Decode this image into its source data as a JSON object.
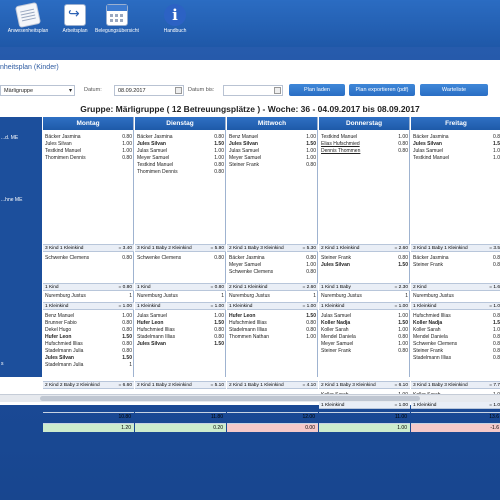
{
  "toolbar": {
    "items": [
      {
        "label": "Anwesenheitsplan",
        "icon": "sheet-icon"
      },
      {
        "label": "Arbeitsplan",
        "icon": "arrow-icon"
      },
      {
        "label": "Belegungsübersicht",
        "icon": "calendar-icon"
      },
      {
        "label": "Handbuch",
        "icon": "info-icon"
      }
    ]
  },
  "window": {
    "title": "nheitsplan (Kinder)",
    "group_value": "Märligruppe",
    "datum_label": "Datum:",
    "datum_value": "08.09.2017",
    "datum_bis_label": "Datum bis:",
    "datum_bis_value": "",
    "btn_load": "Plan laden",
    "btn_export": "Plan exportieren (pdf)",
    "btn_waitlist": "Warteliste",
    "heading": "Gruppe: Märligruppe ( 12 Betreuungsplätze ) - Woche: 36 - 04.09.2017 bis 08.09.2017"
  },
  "row_labels": {
    "r1": "...d. ME",
    "r2": "...hne ME",
    "r3": "s",
    "r4": "lastung"
  },
  "days": [
    {
      "name": "Montag",
      "block1": [
        {
          "t": "Bäcker Jasmina",
          "v": "0.80"
        },
        {
          "t": "Jules Silvan",
          "v": "1.00"
        },
        {
          "t": "Testkind Manuel",
          "v": "1.00"
        },
        {
          "t": "Thomimen Dennis",
          "v": "0.80"
        }
      ],
      "sum1": {
        "t": "3 Kind 1 Kleinkind",
        "v": "= 3.40"
      },
      "block2": [
        {
          "t": "Schwenke Clemens",
          "v": "0.80"
        }
      ],
      "sum2": {
        "t": "1 Kind",
        "v": "= 0.80"
      },
      "nurse": {
        "t": "Nuremburg Justus",
        "v": "1"
      },
      "sum3": {
        "t": "1 Kleinkind",
        "v": "= 1.00"
      },
      "block3": [
        {
          "t": "Benz Manuel",
          "v": "1.00"
        },
        {
          "t": "Brunner Fabio",
          "v": "0.80"
        },
        {
          "t": "Dekel Hugo",
          "v": "0.80"
        },
        {
          "t": "Hufer Leon",
          "v": "1.50",
          "b": true
        },
        {
          "t": "Hufschmied Illias",
          "v": "0.80"
        },
        {
          "t": "Stadelmann Julia",
          "v": "0.80"
        },
        {
          "t": "Jules Silvan",
          "v": "1.50",
          "b": true
        },
        {
          "t": "Stadelmann Julia",
          "v": "1"
        }
      ],
      "sum4": {
        "t": "2 Kind 2 Baby 2 Kleinkind",
        "v": "= 6.60"
      },
      "extra": [],
      "sum5": {
        "t": "",
        "v": ""
      },
      "total": "10.80",
      "diff": "1.20",
      "diff_state": "pos"
    },
    {
      "name": "Dienstag",
      "block1": [
        {
          "t": "Bäcker Jasmina",
          "v": "0.80"
        },
        {
          "t": "Jules Silvan",
          "v": "1.50",
          "b": true
        },
        {
          "t": "Julas Samuel",
          "v": "1.00"
        },
        {
          "t": "Meyer Samuel",
          "v": "1.00"
        },
        {
          "t": "Testkind Manuel",
          "v": "0.80"
        },
        {
          "t": "Thomimen Dennis",
          "v": "0.80"
        }
      ],
      "sum1": {
        "t": "3 Kind 1 Baby 2 Kleinkind",
        "v": "= 5.90"
      },
      "block2": [
        {
          "t": "Schwenke Clemens",
          "v": "0.80"
        }
      ],
      "sum2": {
        "t": "1 Kind",
        "v": "= 0.80"
      },
      "nurse": {
        "t": "Nuremburg Justus",
        "v": "1"
      },
      "sum3": {
        "t": "1 Kleinkind",
        "v": "= 1.00"
      },
      "block3": [
        {
          "t": "Julas Samuel",
          "v": "1.00"
        },
        {
          "t": "Hufer Leon",
          "v": "1.50",
          "b": true
        },
        {
          "t": "Hufschmied Illias",
          "v": "0.80"
        },
        {
          "t": "Stadelmann Illias",
          "v": "0.80"
        },
        {
          "t": "Jules Silvan",
          "v": "1.50",
          "b": true
        }
      ],
      "sum4": {
        "t": "2 Kind 1 Baby 2 Kleinkind",
        "v": "= 5.10"
      },
      "extra": [],
      "sum5": {
        "t": "",
        "v": ""
      },
      "total": "11.80",
      "diff": "0.20",
      "diff_state": "pos"
    },
    {
      "name": "Mittwoch",
      "block1": [
        {
          "t": "Benz Manuel",
          "v": "1.00"
        },
        {
          "t": "Jules Silvan",
          "v": "1.50",
          "b": true
        },
        {
          "t": "Julas Samuel",
          "v": "1.00"
        },
        {
          "t": "Meyer Samuel",
          "v": "1.00"
        },
        {
          "t": "Steiner Frank",
          "v": "0.80"
        }
      ],
      "sum1": {
        "t": "2 Kind 1 Baby 3 Kleinkind",
        "v": "= 5.30"
      },
      "block2": [
        {
          "t": "Bäcker Jasmina",
          "v": "0.80"
        },
        {
          "t": "Meyer Samuel",
          "v": "1.00"
        },
        {
          "t": "Schwenke Clemens",
          "v": "0.80"
        }
      ],
      "sum2": {
        "t": "2 Kind 1 Kleinkind",
        "v": "= 2.60"
      },
      "nurse": {
        "t": "Nuremburg Justus",
        "v": "1"
      },
      "sum3": {
        "t": "1 Kleinkind",
        "v": "= 1.00"
      },
      "block3": [
        {
          "t": "Hufer Leon",
          "v": "1.50",
          "b": true
        },
        {
          "t": "Hufschmied Illias",
          "v": "0.80"
        },
        {
          "t": "Stadelmann Illias",
          "v": "0.80"
        },
        {
          "t": "Thommen Nathan",
          "v": "1.00"
        }
      ],
      "sum4": {
        "t": "2 Kind 1 Baby 1 Kleinkind",
        "v": "= 4.10"
      },
      "extra": [],
      "sum5": {
        "t": "",
        "v": ""
      },
      "total": "12.00",
      "diff": "0.00",
      "diff_state": "neg"
    },
    {
      "name": "Donnerstag",
      "block1": [
        {
          "t": "Testkind Manuel",
          "v": "1.00"
        },
        {
          "t": "Elias Hufschmied",
          "v": "0.80",
          "u": true
        },
        {
          "t": "Dennis Thommen",
          "v": "0.80",
          "u": true
        }
      ],
      "sum1": {
        "t": "2 Kind 1 Kleinkind",
        "v": "= 2.60"
      },
      "block2": [
        {
          "t": "Steiner Frank",
          "v": "0.80"
        },
        {
          "t": "Jules Silvan",
          "v": "1.50",
          "b": true
        }
      ],
      "sum2": {
        "t": "1 Kind 1 Baby",
        "v": "= 2.30"
      },
      "nurse": {
        "t": "Nuremburg Justus",
        "v": "1"
      },
      "sum3": {
        "t": "1 Kleinkind",
        "v": "= 1.00"
      },
      "block3": [
        {
          "t": "Julas Samuel",
          "v": "1.00"
        },
        {
          "t": "Koller Nadja",
          "v": "1.50",
          "b": true
        },
        {
          "t": "Koller Sarah",
          "v": "1.00"
        },
        {
          "t": "Mendel Daniela",
          "v": "0.80"
        },
        {
          "t": "Meyer Samuel",
          "v": "1.00"
        },
        {
          "t": "Steiner Frank",
          "v": "0.80"
        }
      ],
      "sum4": {
        "t": "2 Kind 1 Baby 3 Kleinkind",
        "v": "= 6.10"
      },
      "extra": [
        {
          "t": "Koller Sarah",
          "v": "1.00"
        }
      ],
      "sum5": {
        "t": "1 Kleinkind",
        "v": "= 1.00"
      },
      "total": "11.00",
      "diff": "1.00",
      "diff_state": "pos"
    },
    {
      "name": "Freitag",
      "block1": [
        {
          "t": "Bäcker Jasmina",
          "v": "0.8"
        },
        {
          "t": "Jules Silvan",
          "v": "1.5",
          "b": true
        },
        {
          "t": "Julas Samuel",
          "v": "1.0"
        },
        {
          "t": "Testkind Manuel",
          "v": "1.0"
        }
      ],
      "sum1": {
        "t": "3 Kind 1 Baby 1 Kleinkind",
        "v": "= 3.5"
      },
      "block2": [
        {
          "t": "Bäcker Jasmina",
          "v": "0.8"
        },
        {
          "t": "Steiner Frank",
          "v": "0.8"
        }
      ],
      "sum2": {
        "t": "2 Kind",
        "v": "= 1.6"
      },
      "nurse": {
        "t": "Nuremburg Justus",
        "v": ""
      },
      "sum3": {
        "t": "1 Kleinkind",
        "v": "= 1.0"
      },
      "block3": [
        {
          "t": "Hufschmied Illias",
          "v": "0.8"
        },
        {
          "t": "Koller Nadja",
          "v": "1.5",
          "b": true
        },
        {
          "t": "Koller Sarah",
          "v": "1.0"
        },
        {
          "t": "Mendel Daniela",
          "v": "0.8"
        },
        {
          "t": "Schwenke Clemens",
          "v": "0.8"
        },
        {
          "t": "Steiner Frank",
          "v": "0.8"
        },
        {
          "t": "Stadelmann Illias",
          "v": "0.8"
        }
      ],
      "sum4": {
        "t": "3 Kind 1 Baby 3 Kleinkind",
        "v": "= 7.7"
      },
      "extra": [
        {
          "t": "Koller Sarah",
          "v": "1.0"
        }
      ],
      "sum5": {
        "t": "1 Kleinkind",
        "v": "= 1.0"
      },
      "total": "13.6",
      "diff": "-1.6",
      "diff_state": "neg"
    }
  ]
}
